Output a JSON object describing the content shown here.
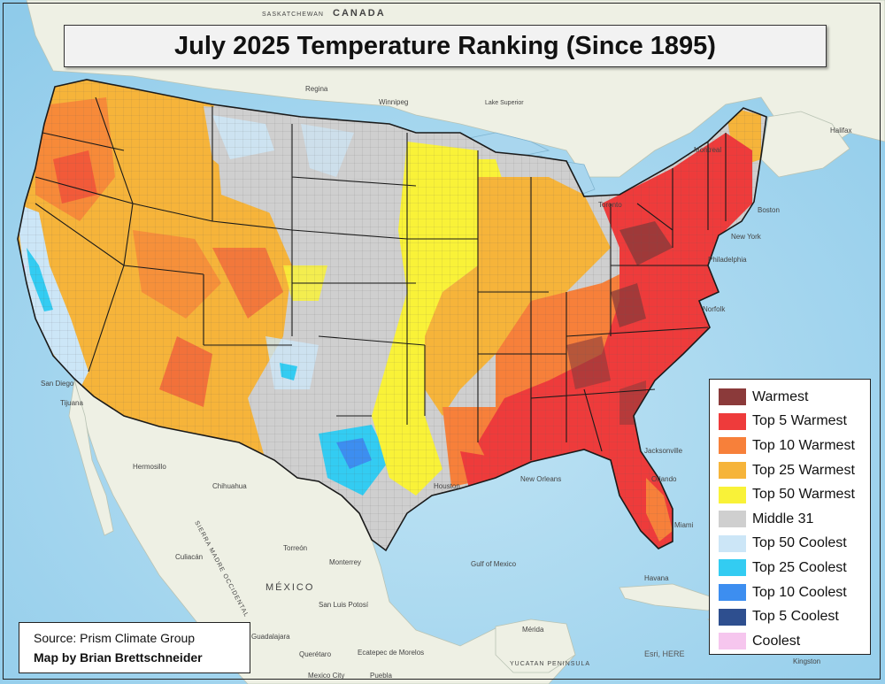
{
  "title": "July 2025 Temperature Ranking (Since 1895)",
  "legend": [
    {
      "label": "Warmest",
      "color": "#8b3a3a"
    },
    {
      "label": "Top 5 Warmest",
      "color": "#ee3b3b"
    },
    {
      "label": "Top 10 Warmest",
      "color": "#f7803a"
    },
    {
      "label": "Top 25 Warmest",
      "color": "#f6b43a"
    },
    {
      "label": "Top 50 Warmest",
      "color": "#f9f238"
    },
    {
      "label": "Middle 31",
      "color": "#cfcfcf"
    },
    {
      "label": "Top 50 Coolest",
      "color": "#cce6f7"
    },
    {
      "label": "Top 25 Coolest",
      "color": "#33ccf2"
    },
    {
      "label": "Top 10 Coolest",
      "color": "#3d8ef0"
    },
    {
      "label": "Top 5 Coolest",
      "color": "#2e4f8f"
    },
    {
      "label": "Coolest",
      "color": "#f6c6ee"
    }
  ],
  "credits": {
    "source": "Source: Prism Climate Group",
    "author": "Map by Brian Brettschneider"
  },
  "attribution": "Esri, HERE",
  "place_labels": {
    "canada": "CANADA",
    "saskatchewan": "SASKATCHEWAN",
    "regina": "Regina",
    "winnipeg": "Winnipeg",
    "montreal": "Montreal",
    "toronto": "Toronto",
    "halifax": "Halifax",
    "boston": "Boston",
    "new_york": "New York",
    "philadelphia": "Philadelphia",
    "norfolk": "Norfolk",
    "jacksonville": "Jacksonville",
    "orlando": "Orlando",
    "miami": "Miami",
    "houston": "Houston",
    "new_orleans": "New Orleans",
    "san_diego": "San Diego",
    "tijuana": "Tijuana",
    "hermosillo": "Hermosillo",
    "chihuahua": "Chihuahua",
    "culiacan": "Culiacán",
    "torreon": "Torreón",
    "monterrey": "Monterrey",
    "mexico": "MÉXICO",
    "san_luis_potosi": "San Luis Potosí",
    "guadalajara": "Guadalajara",
    "queretaro": "Querétaro",
    "ecatepec": "Ecatepec de Morelos",
    "mexico_city": "Mexico City",
    "puebla": "Puebla",
    "merida": "Mérida",
    "yucatan": "YUCATAN PENINSULA",
    "havana": "Havana",
    "kingston": "Kingston",
    "gulf_of_mexico": "Gulf of Mexico",
    "sierra_madre": "SIERRA MADRE OCCIDENTAL",
    "lake_superior": "Lake Superior"
  }
}
